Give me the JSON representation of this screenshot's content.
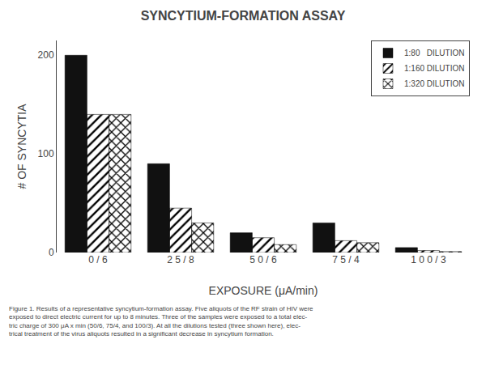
{
  "chart_data": {
    "type": "bar",
    "title": "SYNCYTIUM-FORMATION ASSAY",
    "x_label": "EXPOSURE (μA/min)",
    "y_label": "# OF SYNCYTIA",
    "categories": [
      "0 / 6",
      "2 5 / 8",
      "5 0 / 6",
      "7 5 / 4",
      "1 0 0 / 3"
    ],
    "series": [
      {
        "name": "1:80   DILUTION",
        "color": "#111111",
        "values": [
          200,
          90,
          20,
          30,
          5
        ]
      },
      {
        "name": "1:160 DILUTION",
        "color": "#555555",
        "values": [
          140,
          45,
          15,
          12,
          2
        ]
      },
      {
        "name": "1:320 DILUTION",
        "color": "#888888",
        "values": [
          140,
          30,
          8,
          10,
          1
        ]
      }
    ],
    "ylim": [
      0,
      215
    ],
    "yticks": [
      0,
      100,
      200
    ],
    "grid": false,
    "legend": "upper right",
    "annotations": [
      "Figure 1. Results of a representative syncytium-formation assay. Five aliquots of the RF strain of HIV were\nexposed to direct electric current for up to 8 minutes. Three of the samples were exposed to a total elec-\ntric charge of 300 μA x min (50/6, 75/4, and 100/3). At all the dilutions tested (three shown here), elec-\ntrical treatment of the virus aliquots resulted in a significant decrease in syncytium formation."
    ]
  }
}
